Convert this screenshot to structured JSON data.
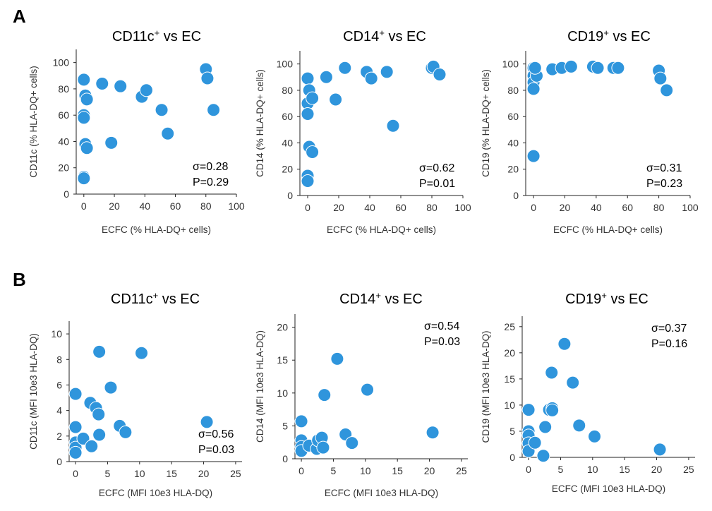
{
  "panel_labels": [
    "A",
    "B"
  ],
  "colors": {
    "marker": "#2f95dc",
    "axis": "#222222",
    "text": "#333333"
  },
  "chart_data": [
    {
      "type": "scatter",
      "row": "A",
      "title_main": "CD11c",
      "title_sup": "+",
      "title_rest": " vs EC",
      "xlabel": "ECFC (% HLA-DQ+ cells)",
      "ylabel": "CD11c (% HLA-DQ+ cells)",
      "xlim": [
        -5,
        100
      ],
      "ylim": [
        0,
        110
      ],
      "xticks": [
        0,
        20,
        40,
        60,
        80,
        100
      ],
      "yticks": [
        0,
        20,
        40,
        60,
        80,
        100
      ],
      "stat_lines": [
        "σ=0.28",
        "P=0.29"
      ],
      "stat_pos": "bottom-right",
      "points": [
        [
          0,
          87
        ],
        [
          0,
          60
        ],
        [
          0,
          58
        ],
        [
          0,
          13
        ],
        [
          0,
          12
        ],
        [
          1,
          75
        ],
        [
          1,
          38
        ],
        [
          2,
          72
        ],
        [
          2,
          35
        ],
        [
          12,
          84
        ],
        [
          18,
          39
        ],
        [
          24,
          82
        ],
        [
          38,
          74
        ],
        [
          41,
          79
        ],
        [
          51,
          64
        ],
        [
          55,
          46
        ],
        [
          80,
          95
        ],
        [
          81,
          88
        ],
        [
          85,
          64
        ]
      ]
    },
    {
      "type": "scatter",
      "row": "A",
      "title_main": "CD14",
      "title_sup": "+",
      "title_rest": " vs EC",
      "xlabel": "ECFC (% HLA-DQ+ cells)",
      "ylabel": "CD14 (% HLA-DQ+ cells)",
      "xlim": [
        -5,
        100
      ],
      "ylim": [
        0,
        110
      ],
      "xticks": [
        0,
        20,
        40,
        60,
        80,
        100
      ],
      "yticks": [
        0,
        20,
        40,
        60,
        80,
        100
      ],
      "stat_lines": [
        "σ=0.62",
        "P=0.01"
      ],
      "stat_pos": "bottom-right",
      "points": [
        [
          0,
          89
        ],
        [
          0,
          70
        ],
        [
          0,
          62
        ],
        [
          0,
          15
        ],
        [
          0,
          11
        ],
        [
          1,
          80
        ],
        [
          1,
          37
        ],
        [
          3,
          74
        ],
        [
          3,
          33
        ],
        [
          12,
          90
        ],
        [
          18,
          73
        ],
        [
          24,
          97
        ],
        [
          38,
          94
        ],
        [
          41,
          89
        ],
        [
          51,
          94
        ],
        [
          55,
          53
        ],
        [
          80,
          97
        ],
        [
          81,
          98
        ],
        [
          85,
          92
        ]
      ]
    },
    {
      "type": "scatter",
      "row": "A",
      "title_main": "CD19",
      "title_sup": "+",
      "title_rest": " vs EC",
      "xlabel": "ECFC (% HLA-DQ+ cells)",
      "ylabel": "CD19 (% HLA-DQ+ cells)",
      "xlim": [
        -5,
        100
      ],
      "ylim": [
        0,
        110
      ],
      "xticks": [
        0,
        20,
        40,
        60,
        80,
        100
      ],
      "yticks": [
        0,
        20,
        40,
        60,
        80,
        100
      ],
      "stat_lines": [
        "σ=0.31",
        "P=0.23"
      ],
      "stat_pos": "bottom-right",
      "points": [
        [
          0,
          97
        ],
        [
          0,
          91
        ],
        [
          0,
          86
        ],
        [
          0,
          81
        ],
        [
          0,
          30
        ],
        [
          2,
          91
        ],
        [
          1,
          97
        ],
        [
          12,
          96
        ],
        [
          18,
          97
        ],
        [
          24,
          98
        ],
        [
          38,
          98
        ],
        [
          41,
          97
        ],
        [
          51,
          97
        ],
        [
          54,
          97
        ],
        [
          80,
          95
        ],
        [
          81,
          89
        ],
        [
          85,
          80
        ]
      ]
    },
    {
      "type": "scatter",
      "row": "B",
      "title_main": "CD11c",
      "title_sup": "+",
      "title_rest": " vs EC",
      "xlabel": "ECFC (MFI 10e3 HLA-DQ)",
      "ylabel": "CD11c (MFI 10e3 HLA-DQ)",
      "xlim": [
        -1,
        26
      ],
      "ylim": [
        0,
        11
      ],
      "xticks": [
        0,
        5,
        10,
        15,
        20,
        25
      ],
      "yticks": [
        0,
        2,
        4,
        6,
        8,
        10
      ],
      "stat_lines": [
        "σ=0.56",
        "P=0.03"
      ],
      "stat_pos": "bottom-right",
      "points": [
        [
          0,
          5.3
        ],
        [
          0,
          2.7
        ],
        [
          0,
          1.5
        ],
        [
          0,
          1.1
        ],
        [
          0,
          0.7
        ],
        [
          1.2,
          1.8
        ],
        [
          2.3,
          4.6
        ],
        [
          2.5,
          1.2
        ],
        [
          3.2,
          4.2
        ],
        [
          3.6,
          3.7
        ],
        [
          3.7,
          8.6
        ],
        [
          3.7,
          2.1
        ],
        [
          5.5,
          5.8
        ],
        [
          6.9,
          2.8
        ],
        [
          7.8,
          2.3
        ],
        [
          10.3,
          8.5
        ],
        [
          20.5,
          3.1
        ]
      ]
    },
    {
      "type": "scatter",
      "row": "B",
      "title_main": "CD14",
      "title_sup": "+",
      "title_rest": " vs EC",
      "xlabel": "ECFC (MFI 10e3 HLA-DQ)",
      "ylabel": "CD14 (MFI 10e3 HLA-DQ)",
      "xlim": [
        -1,
        26
      ],
      "ylim": [
        0,
        22
      ],
      "xticks": [
        0,
        5,
        10,
        15,
        20,
        25
      ],
      "yticks": [
        0,
        5,
        10,
        15,
        20
      ],
      "stat_lines": [
        "σ=0.54",
        "P=0.03"
      ],
      "stat_pos": "top-right",
      "points": [
        [
          0,
          5.7
        ],
        [
          0,
          2.8
        ],
        [
          0,
          1.8
        ],
        [
          0,
          1.2
        ],
        [
          1.2,
          2.0
        ],
        [
          2.4,
          1.5
        ],
        [
          2.6,
          2.8
        ],
        [
          3.2,
          3.2
        ],
        [
          3.4,
          1.7
        ],
        [
          3.6,
          9.7
        ],
        [
          5.6,
          15.2
        ],
        [
          6.9,
          3.7
        ],
        [
          7.9,
          2.4
        ],
        [
          10.3,
          10.5
        ],
        [
          20.5,
          4.0
        ]
      ]
    },
    {
      "type": "scatter",
      "row": "B",
      "title_main": "CD19",
      "title_sup": "+",
      "title_rest": " vs EC",
      "xlabel": "ECFC (MFI 10e3 HLA-DQ)",
      "ylabel": "CD19 (MFI 10e3 HLA-DQ)",
      "xlim": [
        -1,
        26
      ],
      "ylim": [
        0,
        27
      ],
      "xticks": [
        0,
        5,
        10,
        15,
        20,
        25
      ],
      "yticks": [
        0,
        5,
        10,
        15,
        20,
        25
      ],
      "stat_lines": [
        "σ=0.37",
        "P=0.16"
      ],
      "stat_pos": "top-right",
      "points": [
        [
          0,
          9.1
        ],
        [
          0,
          5.0
        ],
        [
          0,
          4.2
        ],
        [
          0,
          2.7
        ],
        [
          0,
          1.2
        ],
        [
          1.0,
          2.8
        ],
        [
          2.3,
          0.3
        ],
        [
          2.6,
          5.8
        ],
        [
          3.2,
          9.1
        ],
        [
          3.6,
          16.2
        ],
        [
          3.7,
          9.4
        ],
        [
          3.7,
          9.0
        ],
        [
          5.6,
          21.7
        ],
        [
          6.9,
          14.3
        ],
        [
          7.9,
          6.1
        ],
        [
          10.3,
          4.0
        ],
        [
          20.5,
          1.5
        ]
      ]
    }
  ]
}
